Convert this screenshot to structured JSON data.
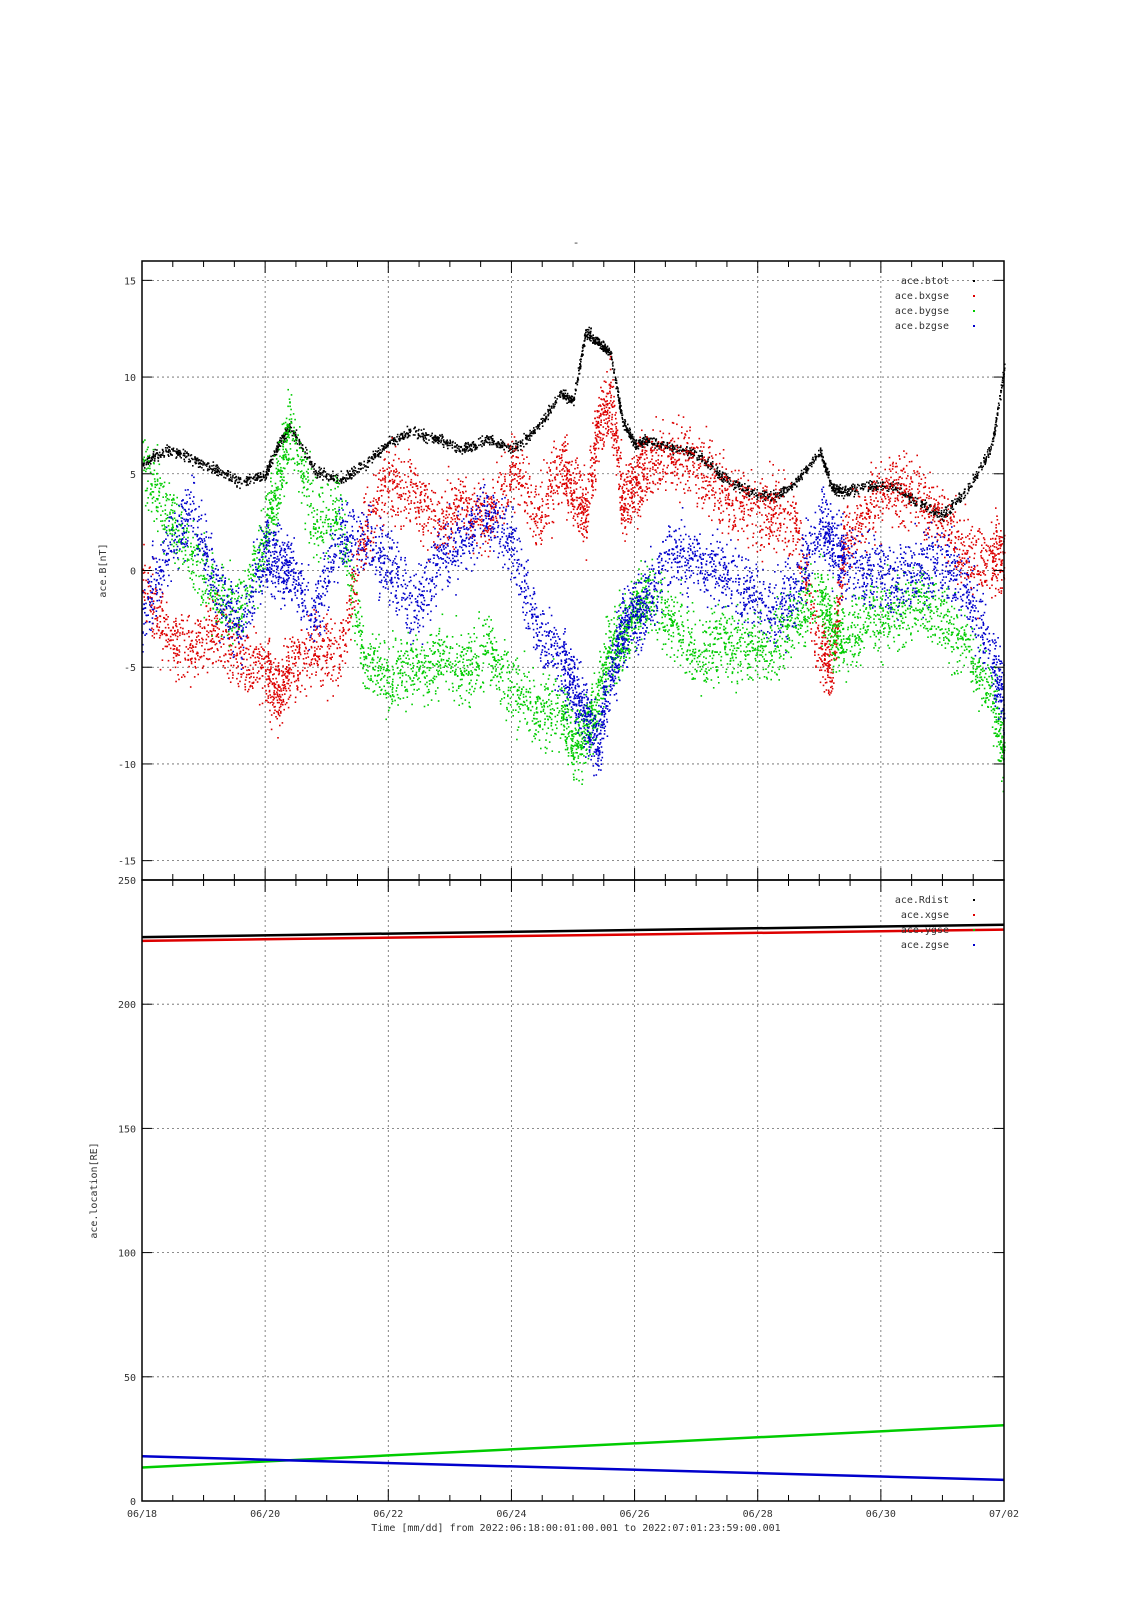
{
  "figure_title": "-",
  "chart_data": [
    {
      "type": "scatter",
      "ylabel": "ace.B[nT]",
      "xlabel": "",
      "ylim": [
        -16,
        16
      ],
      "yticks": [
        -15,
        -10,
        -5,
        0,
        5,
        10,
        15
      ],
      "xlim": [
        "06/18",
        "07/02"
      ],
      "xticks": [
        "06/18",
        "06/20",
        "06/22",
        "06/24",
        "06/26",
        "06/28",
        "06/30",
        "07/02"
      ],
      "grid": true,
      "legend_position": "top-right",
      "series": [
        {
          "name": "ace.btot",
          "color": "#000000",
          "x": [
            0.0,
            0.4,
            0.8,
            1.2,
            1.6,
            2.0,
            2.2,
            2.4,
            2.8,
            3.2,
            3.6,
            4.0,
            4.4,
            4.8,
            5.2,
            5.6,
            6.0,
            6.4,
            6.8,
            7.0,
            7.2,
            7.4,
            7.6,
            7.8,
            8.0,
            8.2,
            8.6,
            9.0,
            9.4,
            9.8,
            10.2,
            10.6,
            11.0,
            11.2,
            11.4,
            11.8,
            12.2,
            12.6,
            13.0,
            13.4,
            13.8,
            14.0
          ],
          "y": [
            5.5,
            6.3,
            5.8,
            5.2,
            4.6,
            5.0,
            6.5,
            7.5,
            5.2,
            4.7,
            5.5,
            6.6,
            7.2,
            6.8,
            6.3,
            6.8,
            6.3,
            7.3,
            9.2,
            8.8,
            12.4,
            11.8,
            11.3,
            7.8,
            6.5,
            6.8,
            6.3,
            6.1,
            4.9,
            4.2,
            3.8,
            4.5,
            6.2,
            4.3,
            4.1,
            4.4,
            4.4,
            3.5,
            2.9,
            4.2,
            6.5,
            10.5
          ]
        },
        {
          "name": "ace.bxgse",
          "color": "#dd0000",
          "x": [
            0.0,
            0.4,
            0.8,
            1.2,
            1.6,
            2.0,
            2.2,
            2.4,
            2.8,
            3.2,
            3.6,
            4.0,
            4.4,
            4.8,
            5.2,
            5.6,
            6.0,
            6.4,
            6.8,
            7.0,
            7.2,
            7.4,
            7.6,
            7.8,
            8.0,
            8.2,
            8.6,
            9.0,
            9.4,
            9.8,
            10.2,
            10.6,
            11.0,
            11.2,
            11.4,
            11.8,
            12.2,
            12.6,
            13.0,
            13.4,
            13.8,
            14.0
          ],
          "y": [
            -0.5,
            -3.5,
            -4.0,
            -3.0,
            -4.5,
            -5.0,
            -6.5,
            -5.0,
            -4.0,
            -4.5,
            2.0,
            4.5,
            4.0,
            2.5,
            3.5,
            2.5,
            5.5,
            3.0,
            5.5,
            4.0,
            3.0,
            7.5,
            9.0,
            3.5,
            4.5,
            5.5,
            6.0,
            5.5,
            4.0,
            3.2,
            3.0,
            2.5,
            -4.0,
            -5.0,
            1.5,
            3.5,
            4.5,
            4.0,
            2.5,
            0.5,
            0.5,
            1.0
          ]
        },
        {
          "name": "ace.bygse",
          "color": "#00cc00",
          "x": [
            0.0,
            0.4,
            0.8,
            1.2,
            1.6,
            2.0,
            2.2,
            2.4,
            2.8,
            3.2,
            3.6,
            4.0,
            4.4,
            4.8,
            5.2,
            5.6,
            6.0,
            6.4,
            6.8,
            7.0,
            7.2,
            7.4,
            7.6,
            7.8,
            8.0,
            8.2,
            8.6,
            9.0,
            9.4,
            9.8,
            10.2,
            10.6,
            11.0,
            11.2,
            11.4,
            11.8,
            12.2,
            12.6,
            13.0,
            13.4,
            13.8,
            14.0
          ],
          "y": [
            5.5,
            3.0,
            1.0,
            -1.5,
            -2.0,
            2.0,
            4.5,
            7.5,
            2.5,
            3.0,
            -4.5,
            -5.5,
            -5.0,
            -4.5,
            -5.0,
            -4.0,
            -6.0,
            -7.5,
            -7.0,
            -9.0,
            -8.5,
            -6.5,
            -4.0,
            -3.5,
            -2.0,
            -1.5,
            -2.5,
            -4.5,
            -3.5,
            -4.0,
            -4.0,
            -2.5,
            -1.0,
            -3.0,
            -3.5,
            -2.5,
            -2.5,
            -1.5,
            -2.5,
            -4.0,
            -6.5,
            -9.5
          ]
        },
        {
          "name": "ace.bzgse",
          "color": "#0000cc",
          "x": [
            0.0,
            0.4,
            0.8,
            1.2,
            1.6,
            2.0,
            2.2,
            2.4,
            2.8,
            3.2,
            3.6,
            4.0,
            4.4,
            4.8,
            5.2,
            5.6,
            6.0,
            6.4,
            6.8,
            7.0,
            7.2,
            7.4,
            7.6,
            7.8,
            8.0,
            8.2,
            8.6,
            9.0,
            9.4,
            9.8,
            10.2,
            10.6,
            11.0,
            11.2,
            11.4,
            11.8,
            12.2,
            12.6,
            13.0,
            13.4,
            13.8,
            14.0
          ],
          "y": [
            -2.5,
            1.0,
            3.5,
            -1.0,
            -3.0,
            1.0,
            0.5,
            0.0,
            -2.5,
            2.0,
            1.5,
            0.5,
            -2.0,
            0.5,
            1.5,
            3.0,
            1.5,
            -3.0,
            -4.5,
            -6.0,
            -7.5,
            -9.0,
            -5.5,
            -3.0,
            -2.5,
            -1.5,
            1.0,
            0.5,
            0.0,
            -1.0,
            -2.0,
            -1.0,
            2.5,
            1.5,
            0.5,
            0.0,
            -0.5,
            0.0,
            0.5,
            -1.0,
            -4.5,
            -7.0
          ]
        }
      ]
    },
    {
      "type": "line",
      "ylabel": "ace.location[RE]",
      "xlabel": "Time [mm/dd]  from 2022:06:18:00:01:00.001  to  2022:07:01:23:59:00.001",
      "ylim": [
        0,
        250
      ],
      "yticks": [
        0,
        50,
        100,
        150,
        200,
        250
      ],
      "xlim": [
        "06/18",
        "07/02"
      ],
      "xticks": [
        "06/18",
        "06/20",
        "06/22",
        "06/24",
        "06/26",
        "06/28",
        "06/30",
        "07/02"
      ],
      "grid": true,
      "legend_position": "top-right",
      "series": [
        {
          "name": "ace.Rdist",
          "color": "#000000",
          "x": [
            "06/18",
            "07/02"
          ],
          "y": [
            227.0,
            232.0
          ]
        },
        {
          "name": "ace.xgse",
          "color": "#dd0000",
          "x": [
            "06/18",
            "07/02"
          ],
          "y": [
            225.5,
            230.0
          ]
        },
        {
          "name": "ace.ygse",
          "color": "#00cc00",
          "x": [
            "06/18",
            "07/02"
          ],
          "y": [
            13.5,
            30.5
          ]
        },
        {
          "name": "ace.zgse",
          "color": "#0000cc",
          "x": [
            "06/18",
            "07/02"
          ],
          "y": [
            18.0,
            8.5
          ]
        }
      ]
    }
  ]
}
